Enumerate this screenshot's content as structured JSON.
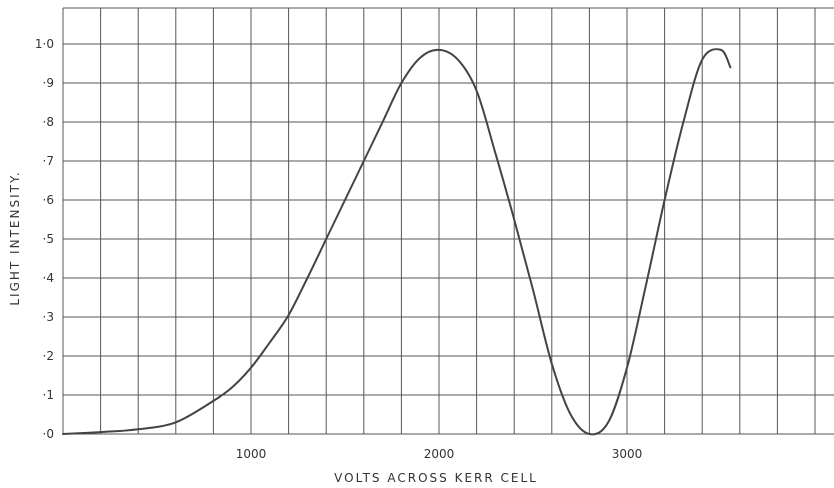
{
  "chart_data": {
    "type": "line",
    "title": "",
    "xlabel": "VOLTS ACROSS KERR CELL",
    "ylabel": "LIGHT INTENSITY.",
    "xlim": [
      0,
      3900
    ],
    "ylim": [
      0,
      1.05
    ],
    "grid": true,
    "x_ticks": [
      {
        "value": 1000,
        "label": "1000"
      },
      {
        "value": 2000,
        "label": "2000"
      },
      {
        "value": 3000,
        "label": "3000"
      }
    ],
    "y_ticks": [
      {
        "value": 0.0,
        "label": "·0"
      },
      {
        "value": 0.1,
        "label": "·1"
      },
      {
        "value": 0.2,
        "label": "·2"
      },
      {
        "value": 0.3,
        "label": "·3"
      },
      {
        "value": 0.4,
        "label": "·4"
      },
      {
        "value": 0.5,
        "label": "·5"
      },
      {
        "value": 0.6,
        "label": "·6"
      },
      {
        "value": 0.7,
        "label": "·7"
      },
      {
        "value": 0.8,
        "label": "·8"
      },
      {
        "value": 0.9,
        "label": "·9"
      },
      {
        "value": 1.0,
        "label": "1·0"
      }
    ],
    "series": [
      {
        "color": "#444444",
        "x": [
          0,
          200,
          400,
          600,
          800,
          900,
          1000,
          1100,
          1200,
          1300,
          1400,
          1500,
          1600,
          1700,
          1800,
          1900,
          2000,
          2100,
          2200,
          2300,
          2400,
          2500,
          2600,
          2700,
          2800,
          2900,
          3000,
          3100,
          3200,
          3300,
          3400,
          3500,
          3550
        ],
        "y": [
          0.0,
          0.005,
          0.012,
          0.03,
          0.085,
          0.12,
          0.17,
          0.235,
          0.305,
          0.4,
          0.5,
          0.6,
          0.7,
          0.8,
          0.9,
          0.965,
          0.985,
          0.96,
          0.88,
          0.72,
          0.55,
          0.37,
          0.18,
          0.05,
          0.0,
          0.03,
          0.17,
          0.38,
          0.6,
          0.8,
          0.96,
          0.985,
          0.94
        ]
      }
    ]
  }
}
